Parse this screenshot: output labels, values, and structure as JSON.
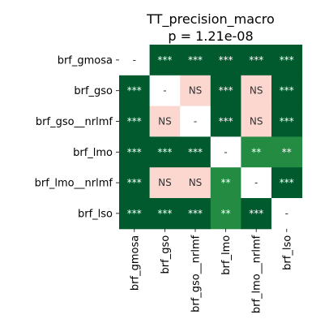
{
  "chart_data": {
    "type": "heatmap",
    "title": "TT_precision_macro",
    "subtitle": "p = 1.21e-08",
    "row_labels": [
      "brf_gmosa",
      "brf_gso",
      "brf_gso__nrlmf",
      "brf_lmo",
      "brf_lmo__nrlmf",
      "brf_lso"
    ],
    "col_labels": [
      "brf_gmosa",
      "brf_gso",
      "brf_gso__nrlmf",
      "brf_lmo",
      "brf_lmo__nrlmf",
      "brf_lso"
    ],
    "cells": [
      [
        "-",
        "***",
        "***",
        "***",
        "***",
        "***"
      ],
      [
        "***",
        "-",
        "NS",
        "***",
        "NS",
        "***"
      ],
      [
        "***",
        "NS",
        "-",
        "***",
        "NS",
        "***"
      ],
      [
        "***",
        "***",
        "***",
        "-",
        "**",
        "**"
      ],
      [
        "***",
        "NS",
        "NS",
        "**",
        "-",
        "***"
      ],
      [
        "***",
        "***",
        "***",
        "**",
        "***",
        "-"
      ]
    ],
    "colors": {
      "***": "#005a2e",
      "**": "#248b43",
      "NS": "#fbd7d0",
      "-": "#ffffff",
      "text_dark_cell": "#ffffff",
      "text_light_cell": "#333333"
    }
  }
}
